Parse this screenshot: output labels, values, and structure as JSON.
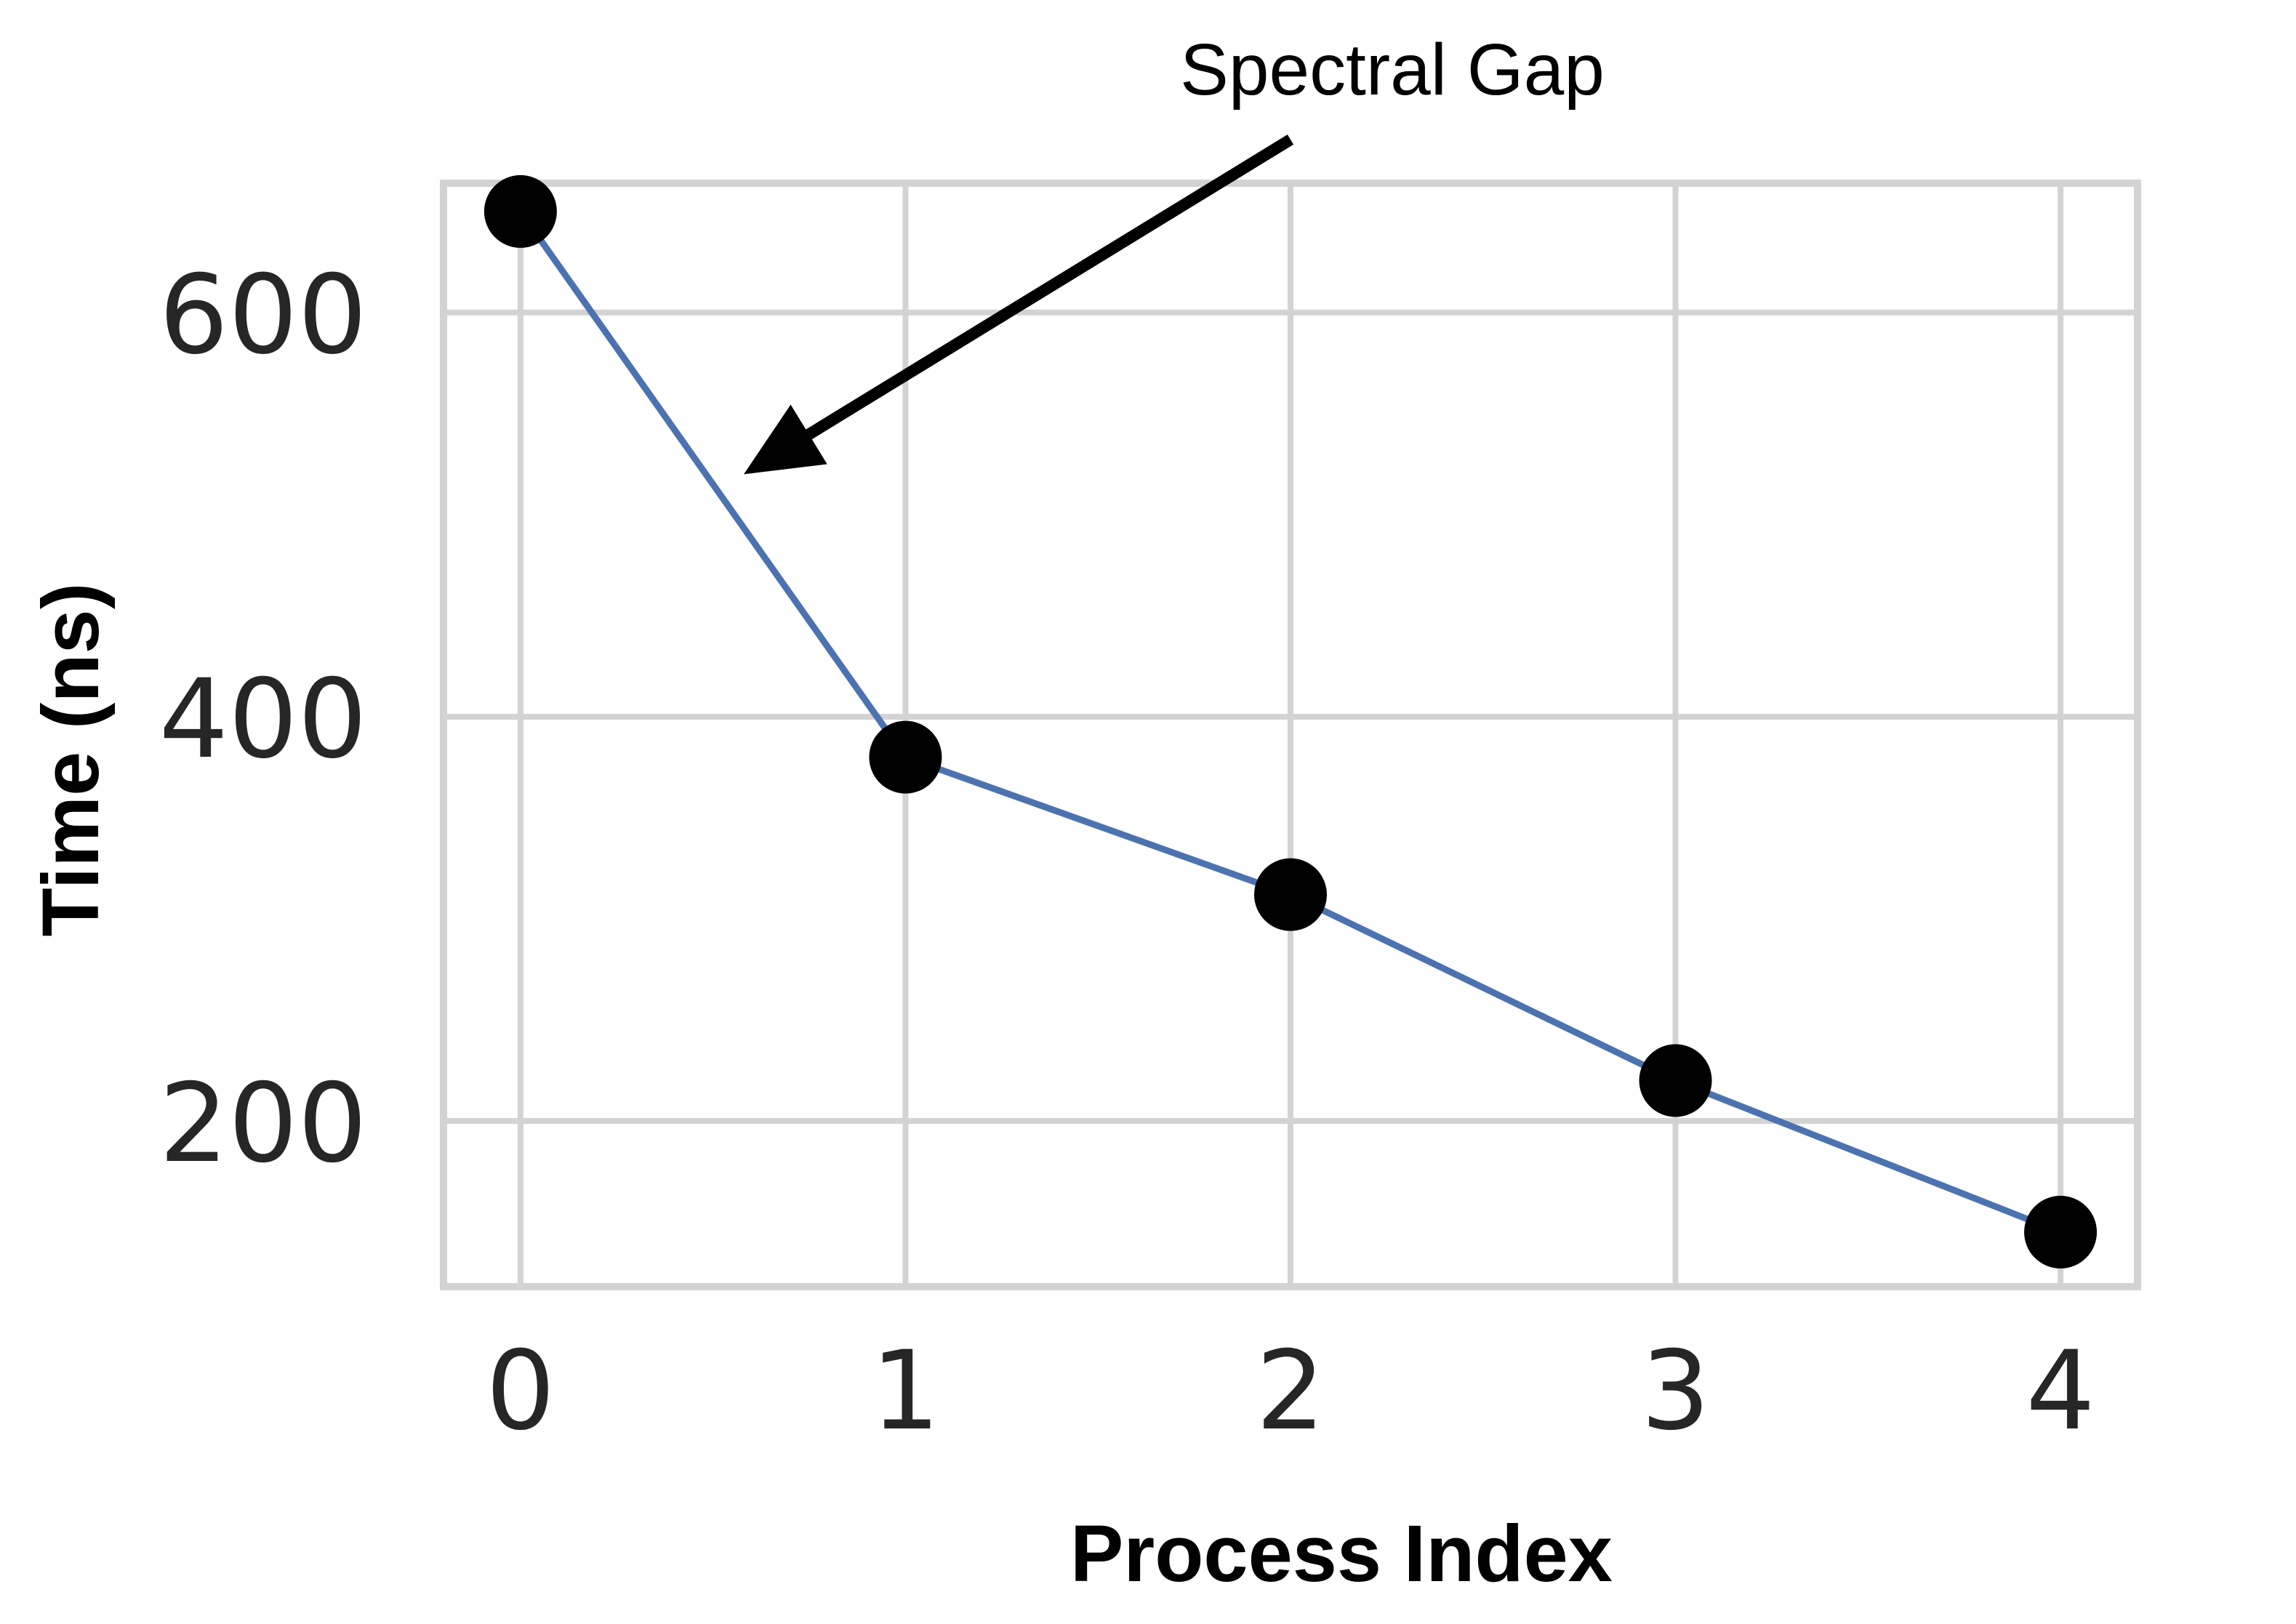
{
  "chart_data": {
    "type": "line",
    "x": [
      0,
      1,
      2,
      3,
      4
    ],
    "series": [
      {
        "values": [
          650,
          380,
          312,
          220,
          145
        ]
      }
    ],
    "xticks": [
      "0",
      "1",
      "2",
      "3",
      "4"
    ],
    "yticks": [
      "200",
      "400",
      "600"
    ],
    "xlabel": "Process Index",
    "ylabel": "Time (ns)",
    "xlim": [
      -0.2,
      4.2
    ],
    "ylim": [
      118,
      664
    ],
    "grid": true,
    "annotation": {
      "text": "Spectral Gap",
      "points_to": {
        "x": 0.58,
        "y": 520
      }
    },
    "colors": {
      "line": "#4c72b0",
      "marker": "#000000",
      "grid": "#d3d3d3",
      "text": "#262626"
    }
  }
}
